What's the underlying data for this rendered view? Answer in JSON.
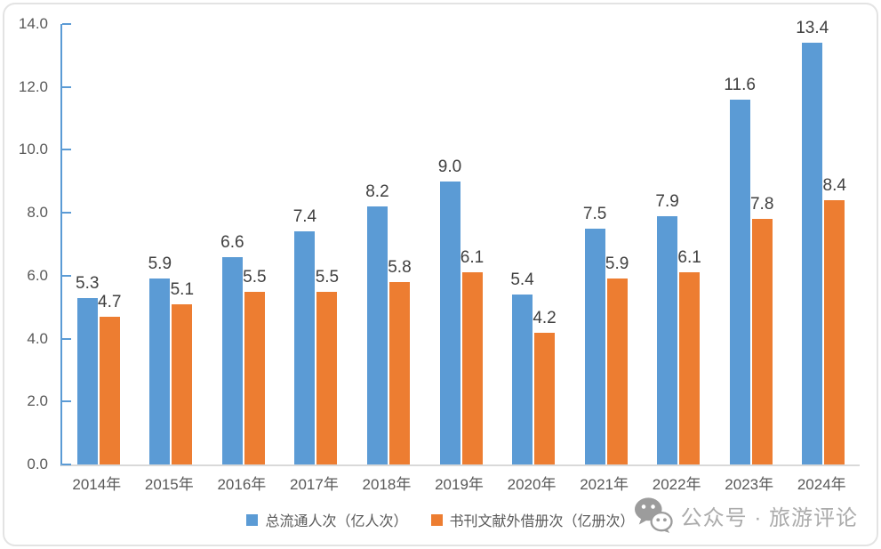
{
  "chart_data": {
    "type": "bar",
    "categories": [
      "2014年",
      "2015年",
      "2016年",
      "2017年",
      "2018年",
      "2019年",
      "2020年",
      "2021年",
      "2022年",
      "2023年",
      "2024年"
    ],
    "series": [
      {
        "name": "总流通人次（亿人次）",
        "color": "#5b9bd5",
        "values": [
          5.3,
          5.9,
          6.6,
          7.4,
          8.2,
          9.0,
          5.4,
          7.5,
          7.9,
          11.6,
          13.4
        ]
      },
      {
        "name": "书刊文献外借册次（亿册次）",
        "color": "#ed7d31",
        "values": [
          4.7,
          5.1,
          5.5,
          5.5,
          5.8,
          6.1,
          4.2,
          5.9,
          6.1,
          7.8,
          8.4
        ]
      }
    ],
    "title": "",
    "xlabel": "",
    "ylabel": "",
    "ylim": [
      0,
      14
    ],
    "ytick_step": 2,
    "ytick_labels": [
      "0.0",
      "2.0",
      "4.0",
      "6.0",
      "8.0",
      "10.0",
      "12.0",
      "14.0"
    ],
    "grid": false,
    "legend_position": "bottom",
    "value_labels": true,
    "value_label_decimals": 1
  },
  "axis_colors": {
    "y_axis_line": "#5b9bd5",
    "x_axis_line": "#d9d9d9",
    "tick_label": "#595959",
    "value_label": "#3f3f3f"
  },
  "watermark": {
    "text": "公众号 · 旅游评论",
    "icon": "wechat-icon",
    "color": "#ababab"
  }
}
